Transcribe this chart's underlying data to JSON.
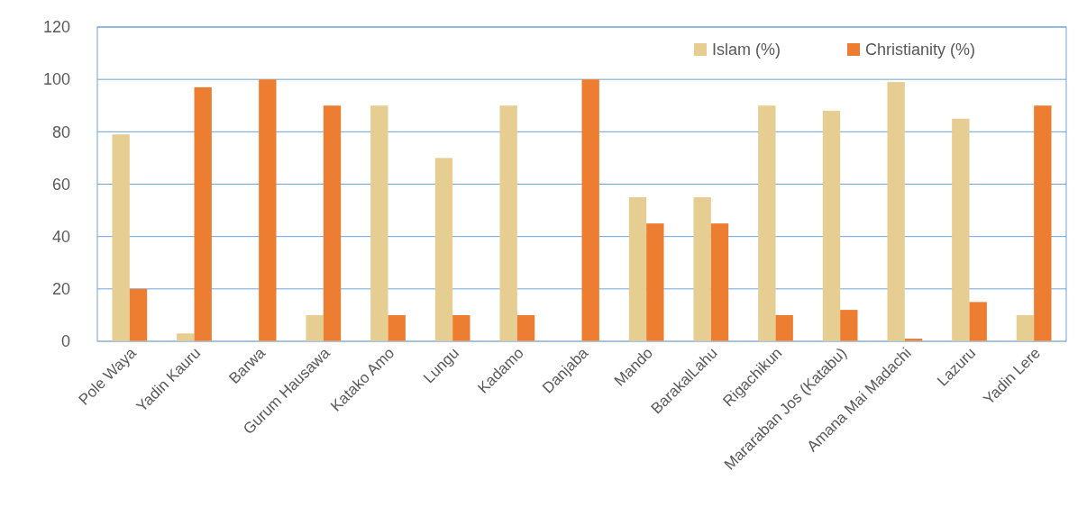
{
  "chart_data": {
    "type": "bar",
    "categories": [
      "Pole Waya",
      "Yadin Kauru",
      "Barwa",
      "Gurum Hausawa",
      "Katako Amo",
      "Lungu",
      "Kadamo",
      "Danjaba",
      "Mando",
      "BarakalLahu",
      "Rigachikun",
      "Mararaban Jos (Katabu)",
      "Amana Mai Madachi",
      "Lazuru",
      "Yadin Lere"
    ],
    "series": [
      {
        "name": "Islam (%)",
        "color": "#e6cd92",
        "values": [
          79,
          3,
          0,
          10,
          90,
          70,
          90,
          0,
          55,
          55,
          90,
          88,
          99,
          85,
          10
        ]
      },
      {
        "name": "Christianity (%)",
        "color": "#ed7d31",
        "values": [
          20,
          97,
          100,
          90,
          10,
          10,
          10,
          100,
          45,
          45,
          10,
          12,
          1,
          15,
          90
        ]
      }
    ],
    "ylim": [
      0,
      120
    ],
    "yticks": [
      0,
      20,
      40,
      60,
      80,
      100,
      120
    ],
    "grid": "y",
    "legend": "top right"
  }
}
